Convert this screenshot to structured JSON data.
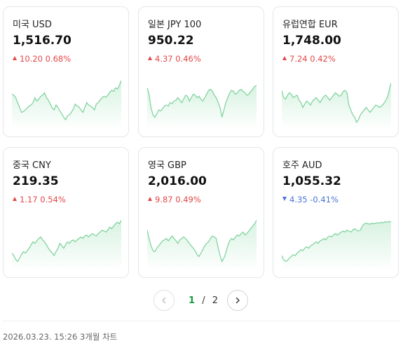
{
  "cards": [
    {
      "name": "미국 USD",
      "price": "1,516.70",
      "change": "10.20",
      "pct": "0.68%",
      "direction": "up",
      "trend": [
        0.62,
        0.6,
        0.55,
        0.45,
        0.35,
        0.25,
        0.27,
        0.3,
        0.34,
        0.38,
        0.4,
        0.45,
        0.55,
        0.48,
        0.52,
        0.58,
        0.6,
        0.65,
        0.55,
        0.5,
        0.42,
        0.34,
        0.3,
        0.4,
        0.35,
        0.28,
        0.22,
        0.15,
        0.1,
        0.18,
        0.2,
        0.25,
        0.32,
        0.42,
        0.38,
        0.36,
        0.3,
        0.25,
        0.35,
        0.45,
        0.4,
        0.38,
        0.35,
        0.3,
        0.42,
        0.45,
        0.5,
        0.55,
        0.58,
        0.56,
        0.6,
        0.66,
        0.7,
        0.68,
        0.75,
        0.73,
        0.8,
        0.9
      ]
    },
    {
      "name": "일본 JPY 100",
      "price": "950.22",
      "change": "4.37",
      "pct": "0.46%",
      "direction": "up",
      "trend": [
        0.75,
        0.62,
        0.35,
        0.2,
        0.15,
        0.22,
        0.3,
        0.28,
        0.32,
        0.38,
        0.4,
        0.38,
        0.45,
        0.43,
        0.48,
        0.5,
        0.55,
        0.5,
        0.45,
        0.52,
        0.6,
        0.58,
        0.48,
        0.55,
        0.62,
        0.6,
        0.55,
        0.58,
        0.52,
        0.48,
        0.55,
        0.62,
        0.7,
        0.72,
        0.68,
        0.6,
        0.55,
        0.45,
        0.35,
        0.15,
        0.3,
        0.45,
        0.55,
        0.65,
        0.7,
        0.68,
        0.62,
        0.65,
        0.7,
        0.72,
        0.68,
        0.65,
        0.6,
        0.62,
        0.68,
        0.72,
        0.78,
        0.8
      ]
    },
    {
      "name": "유럽연합 EUR",
      "price": "1,748.00",
      "change": "7.24",
      "pct": "0.42%",
      "direction": "up",
      "trend": [
        0.7,
        0.55,
        0.52,
        0.6,
        0.65,
        0.62,
        0.55,
        0.58,
        0.6,
        0.5,
        0.45,
        0.35,
        0.42,
        0.48,
        0.45,
        0.4,
        0.48,
        0.52,
        0.55,
        0.5,
        0.45,
        0.52,
        0.58,
        0.6,
        0.55,
        0.5,
        0.55,
        0.6,
        0.65,
        0.62,
        0.58,
        0.6,
        0.68,
        0.7,
        0.65,
        0.4,
        0.3,
        0.2,
        0.15,
        0.05,
        0.1,
        0.2,
        0.25,
        0.3,
        0.35,
        0.3,
        0.25,
        0.3,
        0.35,
        0.4,
        0.38,
        0.35,
        0.38,
        0.42,
        0.48,
        0.55,
        0.7,
        0.85
      ]
    },
    {
      "name": "중국 CNY",
      "price": "219.35",
      "change": "1.17",
      "pct": "0.54%",
      "direction": "up",
      "trend": [
        0.25,
        0.2,
        0.12,
        0.08,
        0.15,
        0.22,
        0.28,
        0.25,
        0.3,
        0.35,
        0.42,
        0.48,
        0.45,
        0.5,
        0.55,
        0.58,
        0.52,
        0.48,
        0.42,
        0.35,
        0.3,
        0.25,
        0.2,
        0.28,
        0.35,
        0.45,
        0.4,
        0.35,
        0.42,
        0.48,
        0.45,
        0.5,
        0.52,
        0.48,
        0.52,
        0.55,
        0.58,
        0.55,
        0.6,
        0.62,
        0.58,
        0.62,
        0.65,
        0.62,
        0.6,
        0.65,
        0.68,
        0.72,
        0.7,
        0.68,
        0.72,
        0.78,
        0.75,
        0.8,
        0.85,
        0.88,
        0.85,
        0.92
      ]
    },
    {
      "name": "영국 GBP",
      "price": "2,016.00",
      "change": "9.87",
      "pct": "0.49%",
      "direction": "up",
      "trend": [
        0.72,
        0.55,
        0.4,
        0.3,
        0.28,
        0.35,
        0.4,
        0.45,
        0.5,
        0.52,
        0.55,
        0.5,
        0.55,
        0.6,
        0.55,
        0.5,
        0.45,
        0.52,
        0.55,
        0.58,
        0.55,
        0.5,
        0.45,
        0.4,
        0.35,
        0.3,
        0.22,
        0.18,
        0.25,
        0.32,
        0.4,
        0.45,
        0.48,
        0.55,
        0.6,
        0.58,
        0.55,
        0.35,
        0.2,
        0.08,
        0.15,
        0.25,
        0.4,
        0.5,
        0.55,
        0.52,
        0.58,
        0.62,
        0.6,
        0.65,
        0.68,
        0.62,
        0.65,
        0.7,
        0.75,
        0.8,
        0.85,
        0.92
      ]
    },
    {
      "name": "호주 AUD",
      "price": "1,055.32",
      "change": "4.35",
      "pct": "-0.41%",
      "direction": "down",
      "trend": [
        0.2,
        0.12,
        0.08,
        0.1,
        0.15,
        0.18,
        0.22,
        0.2,
        0.25,
        0.28,
        0.32,
        0.3,
        0.35,
        0.38,
        0.35,
        0.4,
        0.42,
        0.45,
        0.48,
        0.45,
        0.5,
        0.52,
        0.55,
        0.52,
        0.58,
        0.6,
        0.58,
        0.62,
        0.65,
        0.62,
        0.65,
        0.68,
        0.7,
        0.68,
        0.72,
        0.7,
        0.68,
        0.72,
        0.75,
        0.72,
        0.7,
        0.72,
        0.8,
        0.85,
        0.86,
        0.85,
        0.84,
        0.86,
        0.85,
        0.86,
        0.87,
        0.86,
        0.88,
        0.87,
        0.89,
        0.88,
        0.9,
        0.88
      ]
    }
  ],
  "pager": {
    "current": "1",
    "separator": "/",
    "total": "2"
  },
  "footer": {
    "timestamp": "2026.03.23. 15:26",
    "label": "3개월 차트"
  },
  "colors": {
    "up": "#e34848",
    "down": "#4a74d6",
    "chart_line": "#7bd19a",
    "chart_fill": "#d3f1de",
    "accent": "#1a9b45"
  }
}
